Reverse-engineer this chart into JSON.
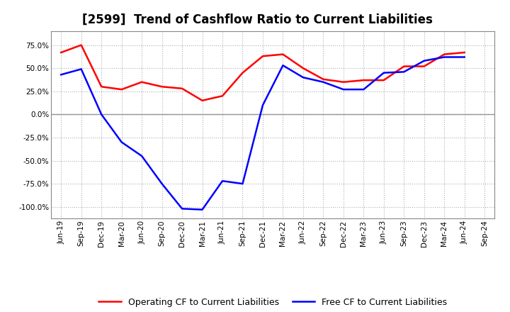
{
  "title": "[2599]  Trend of Cashflow Ratio to Current Liabilities",
  "x_labels": [
    "Jun-19",
    "Sep-19",
    "Dec-19",
    "Mar-20",
    "Jun-20",
    "Sep-20",
    "Dec-20",
    "Mar-21",
    "Jun-21",
    "Sep-21",
    "Dec-21",
    "Mar-22",
    "Jun-22",
    "Sep-22",
    "Dec-22",
    "Mar-23",
    "Jun-23",
    "Sep-23",
    "Dec-23",
    "Mar-24",
    "Jun-24",
    "Sep-24"
  ],
  "operating_cf": [
    67.0,
    75.0,
    30.0,
    27.0,
    35.0,
    30.0,
    28.0,
    15.0,
    20.0,
    45.0,
    63.0,
    65.0,
    50.0,
    38.0,
    35.0,
    37.0,
    37.0,
    52.0,
    52.0,
    65.0,
    67.0,
    null
  ],
  "free_cf": [
    43.0,
    49.0,
    0.0,
    -30.0,
    -45.0,
    -75.0,
    -102.0,
    -103.0,
    -72.0,
    -75.0,
    10.0,
    53.0,
    40.0,
    35.0,
    27.0,
    27.0,
    45.0,
    46.0,
    58.0,
    62.0,
    62.0,
    null
  ],
  "ylim": [
    -112.5,
    90.0
  ],
  "yticks": [
    -100.0,
    -75.0,
    -50.0,
    -25.0,
    0.0,
    25.0,
    50.0,
    75.0
  ],
  "operating_color": "#FF0000",
  "free_color": "#0000FF",
  "grid_color": "#b0b0b0",
  "zero_line_color": "#888888",
  "background_color": "#ffffff",
  "title_fontsize": 12,
  "legend_fontsize": 9,
  "tick_fontsize": 7.5
}
